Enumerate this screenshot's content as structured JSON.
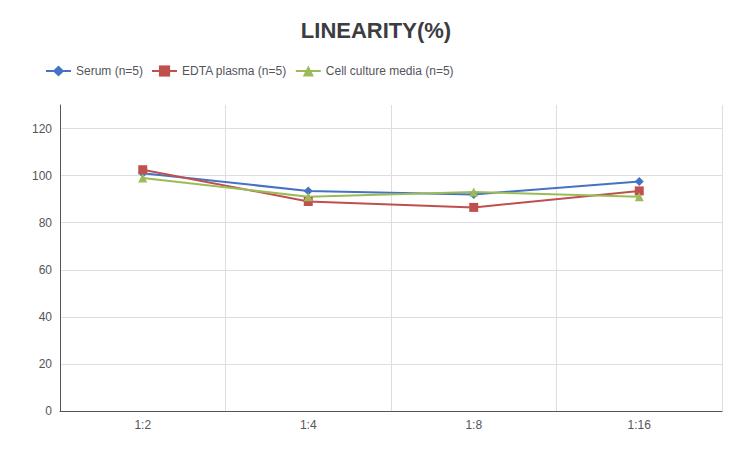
{
  "chart_data": {
    "type": "line",
    "title": "LINEARITY(%)",
    "categories": [
      "1:2",
      "1:4",
      "1:8",
      "1:16"
    ],
    "series": [
      {
        "name": "Serum (n=5)",
        "color": "#4472C4",
        "marker": "diamond",
        "values": [
          101.0,
          93.5,
          92.0,
          97.5
        ]
      },
      {
        "name": "EDTA plasma (n=5)",
        "color": "#C0504D",
        "marker": "square",
        "values": [
          102.5,
          89.0,
          86.5,
          93.5
        ]
      },
      {
        "name": "Cell culture media (n=5)",
        "color": "#9BBB59",
        "marker": "triangle",
        "values": [
          99.0,
          91.0,
          93.0,
          91.0
        ]
      }
    ],
    "ylim": [
      0,
      130
    ],
    "yticks": [
      0,
      20,
      40,
      60,
      80,
      100,
      120
    ],
    "grid": true,
    "legend": "upper left"
  }
}
